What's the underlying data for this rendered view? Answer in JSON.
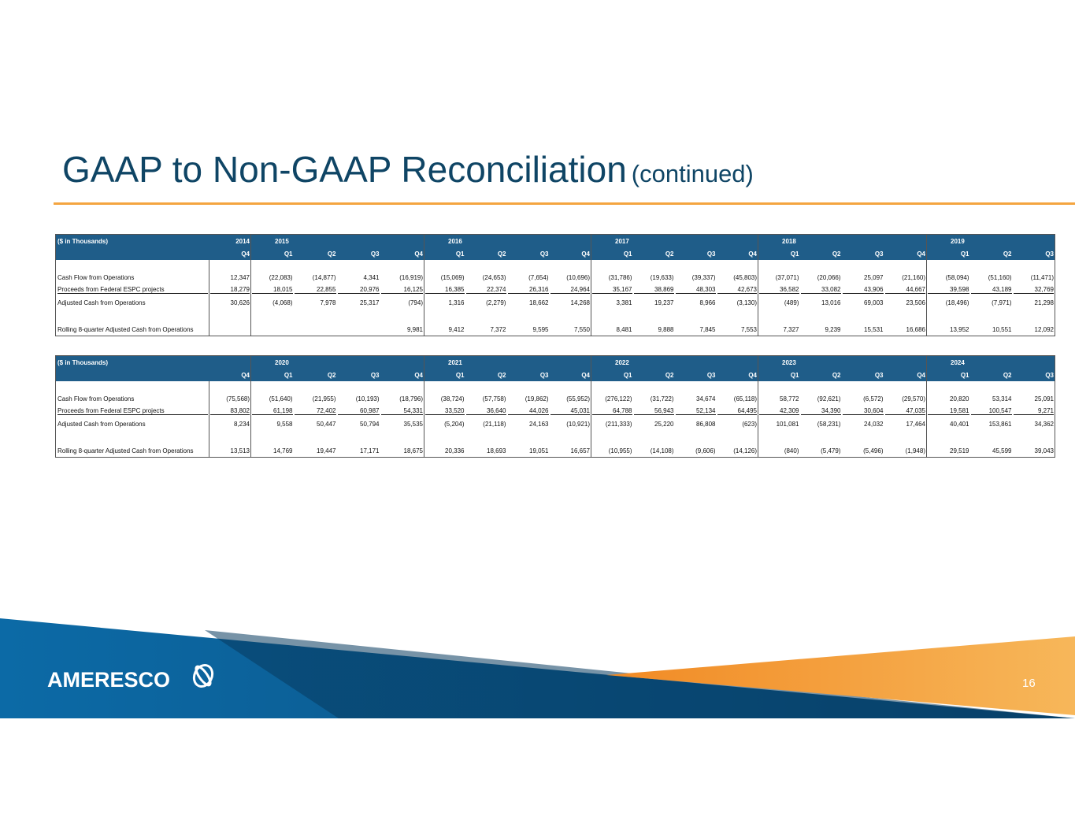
{
  "header": {
    "title": "GAAP to Non-GAAP Reconciliation",
    "subtitle": "(continued)"
  },
  "tables": [
    {
      "unit_label": "($ in Thousands)",
      "columns": [
        {
          "year": "2014",
          "quarter": "Q4"
        },
        {
          "year": "2015",
          "quarter": "Q1"
        },
        {
          "year": null,
          "quarter": "Q2"
        },
        {
          "year": null,
          "quarter": "Q3"
        },
        {
          "year": null,
          "quarter": "Q4"
        },
        {
          "year": "2016",
          "quarter": "Q1"
        },
        {
          "year": null,
          "quarter": "Q2"
        },
        {
          "year": null,
          "quarter": "Q3"
        },
        {
          "year": null,
          "quarter": "Q4"
        },
        {
          "year": "2017",
          "quarter": "Q1"
        },
        {
          "year": null,
          "quarter": "Q2"
        },
        {
          "year": null,
          "quarter": "Q3"
        },
        {
          "year": null,
          "quarter": "Q4"
        },
        {
          "year": "2018",
          "quarter": "Q1"
        },
        {
          "year": null,
          "quarter": "Q2"
        },
        {
          "year": null,
          "quarter": "Q3"
        },
        {
          "year": null,
          "quarter": "Q4"
        },
        {
          "year": "2019",
          "quarter": "Q1"
        },
        {
          "year": null,
          "quarter": "Q2"
        },
        {
          "year": null,
          "quarter": "Q3"
        }
      ],
      "rows": [
        {
          "label": "Cash Flow from Operations",
          "values": [
            "12,347",
            "(22,083)",
            "(14,877)",
            "4,341",
            "(16,919)",
            "(15,069)",
            "(24,653)",
            "(7,654)",
            "(10,696)",
            "(31,786)",
            "(19,633)",
            "(39,337)",
            "(45,803)",
            "(37,071)",
            "(20,066)",
            "25,097",
            "(21,160)",
            "(58,094)",
            "(51,160)",
            "(11,471)"
          ]
        },
        {
          "label": "Proceeds from Federal ESPC projects",
          "values": [
            "18,279",
            "18,015",
            "22,855",
            "20,976",
            "16,125",
            "16,385",
            "22,374",
            "26,316",
            "24,964",
            "35,167",
            "38,869",
            "48,303",
            "42,673",
            "36,582",
            "33,082",
            "43,906",
            "44,667",
            "39,598",
            "43,189",
            "32,769"
          ]
        },
        {
          "label": "Adjusted Cash from Operations",
          "values": [
            "30,626",
            "(4,068)",
            "7,978",
            "25,317",
            "(794)",
            "1,316",
            "(2,279)",
            "18,662",
            "14,268",
            "3,381",
            "19,237",
            "8,966",
            "(3,130)",
            "(489)",
            "13,016",
            "69,003",
            "23,506",
            "(18,496)",
            "(7,971)",
            "21,298"
          ]
        },
        {
          "label": "Rolling 8-quarter Adjusted Cash from Operations",
          "values": [
            null,
            null,
            null,
            null,
            "9,981",
            "9,412",
            "7,372",
            "9,595",
            "7,550",
            "8,481",
            "9,888",
            "7,845",
            "7,553",
            "7,327",
            "9,239",
            "15,531",
            "16,686",
            "13,952",
            "10,551",
            "12,092"
          ]
        }
      ]
    },
    {
      "unit_label": "($ in Thousands)",
      "columns": [
        {
          "year": null,
          "quarter": "Q4"
        },
        {
          "year": "2020",
          "quarter": "Q1"
        },
        {
          "year": null,
          "quarter": "Q2"
        },
        {
          "year": null,
          "quarter": "Q3"
        },
        {
          "year": null,
          "quarter": "Q4"
        },
        {
          "year": "2021",
          "quarter": "Q1"
        },
        {
          "year": null,
          "quarter": "Q2"
        },
        {
          "year": null,
          "quarter": "Q3"
        },
        {
          "year": null,
          "quarter": "Q4"
        },
        {
          "year": "2022",
          "quarter": "Q1"
        },
        {
          "year": null,
          "quarter": "Q2"
        },
        {
          "year": null,
          "quarter": "Q3"
        },
        {
          "year": null,
          "quarter": "Q4"
        },
        {
          "year": "2023",
          "quarter": "Q1"
        },
        {
          "year": null,
          "quarter": "Q2"
        },
        {
          "year": null,
          "quarter": "Q3"
        },
        {
          "year": null,
          "quarter": "Q4"
        },
        {
          "year": "2024",
          "quarter": "Q1"
        },
        {
          "year": null,
          "quarter": "Q2"
        },
        {
          "year": null,
          "quarter": "Q3"
        }
      ],
      "rows": [
        {
          "label": "Cash Flow from Operations",
          "values": [
            "(75,568)",
            "(51,640)",
            "(21,955)",
            "(10,193)",
            "(18,796)",
            "(38,724)",
            "(57,758)",
            "(19,862)",
            "(55,952)",
            "(276,122)",
            "(31,722)",
            "34,674",
            "(65,118)",
            "58,772",
            "(92,621)",
            "(6,572)",
            "(29,570)",
            "20,820",
            "53,314",
            "25,091"
          ]
        },
        {
          "label": "Proceeds from Federal ESPC projects",
          "values": [
            "83,802",
            "61,198",
            "72,402",
            "60,987",
            "54,331",
            "33,520",
            "36,640",
            "44,026",
            "45,031",
            "64,788",
            "56,943",
            "52,134",
            "64,495",
            "42,309",
            "34,390",
            "30,604",
            "47,035",
            "19,581",
            "100,547",
            "9,271"
          ]
        },
        {
          "label": "Adjusted Cash from Operations",
          "values": [
            "8,234",
            "9,558",
            "50,447",
            "50,794",
            "35,535",
            "(5,204)",
            "(21,118)",
            "24,163",
            "(10,921)",
            "(211,333)",
            "25,220",
            "86,808",
            "(623)",
            "101,081",
            "(58,231)",
            "24,032",
            "17,464",
            "40,401",
            "153,861",
            "34,362"
          ]
        },
        {
          "label": "Rolling 8-quarter Adjusted Cash from Operations",
          "values": [
            "13,513",
            "14,769",
            "19,447",
            "17,171",
            "18,675",
            "20,336",
            "18,693",
            "19,051",
            "16,657",
            "(10,955)",
            "(14,108)",
            "(9,606)",
            "(14,126)",
            "(840)",
            "(5,479)",
            "(5,496)",
            "(1,948)",
            "29,519",
            "45,599",
            "39,043"
          ]
        }
      ]
    }
  ],
  "footer": {
    "logo": "AMERESCO",
    "page_number": "16"
  }
}
